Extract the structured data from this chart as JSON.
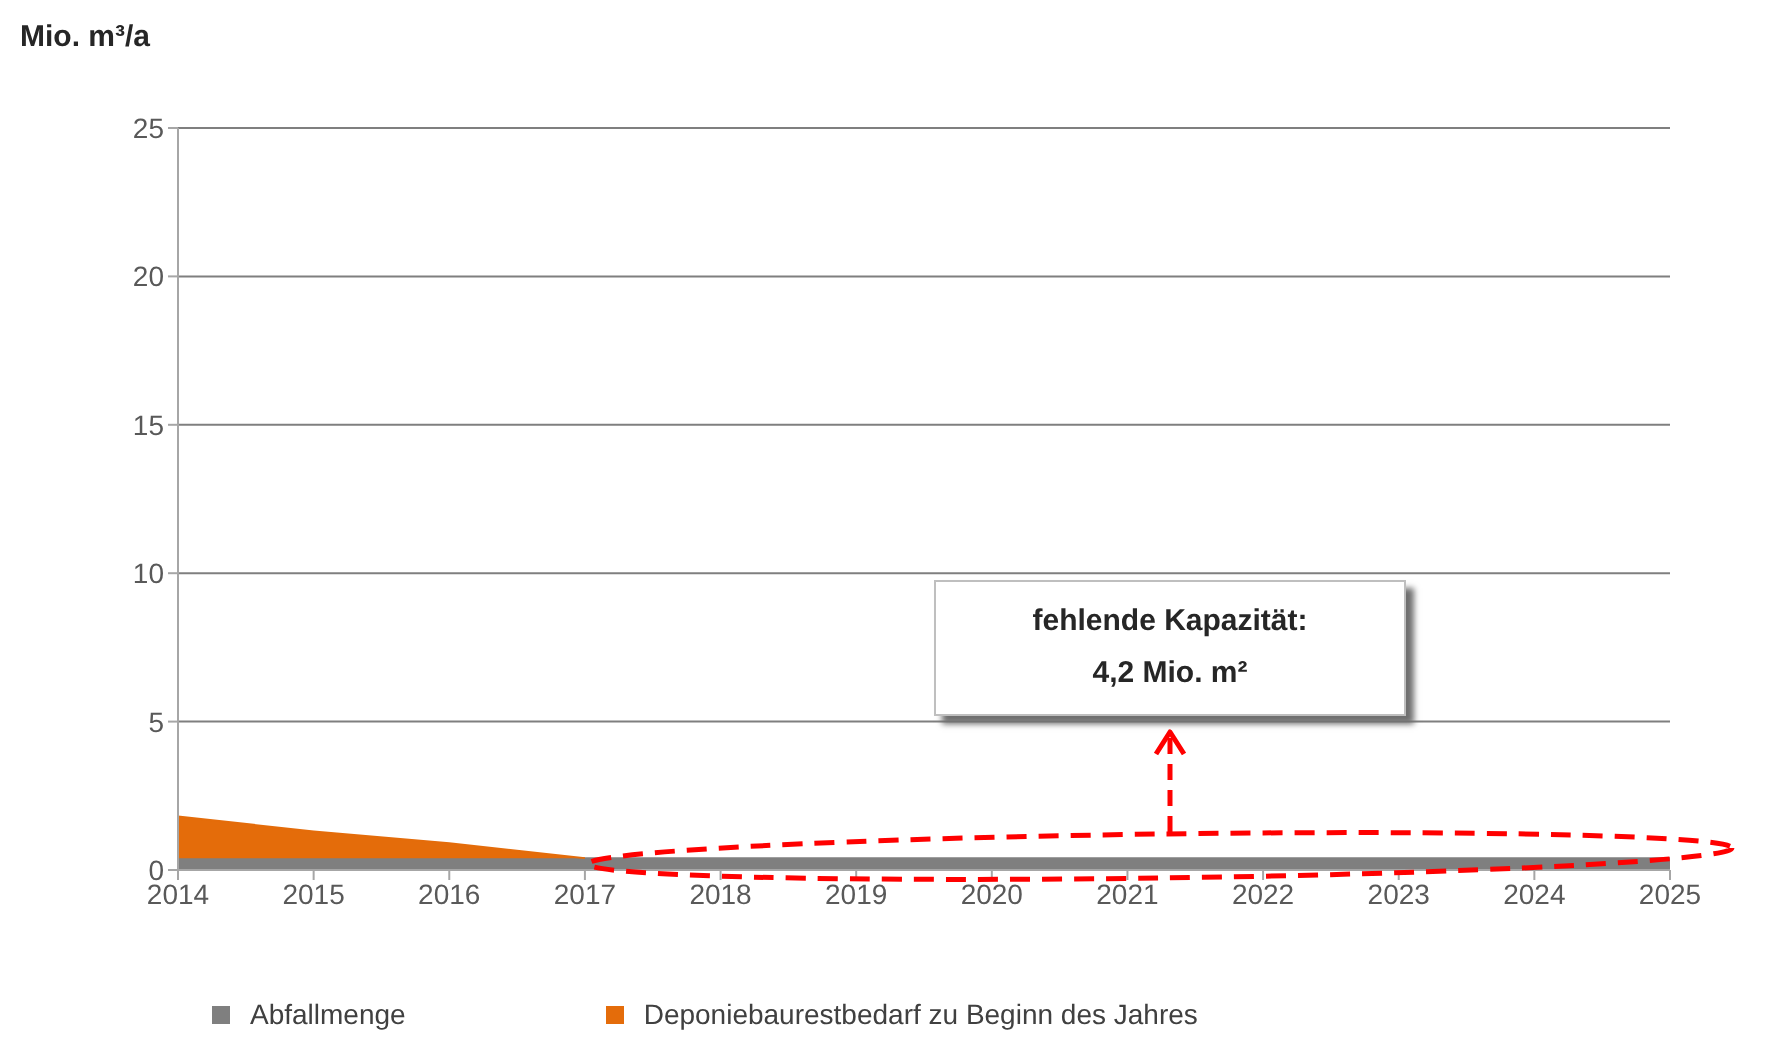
{
  "chart_data": {
    "type": "area",
    "ylabel": "Mio. m³/a",
    "x": [
      2014,
      2015,
      2016,
      2017,
      2018,
      2019,
      2020,
      2021,
      2022,
      2023,
      2024,
      2025
    ],
    "xlim": [
      2014,
      2025
    ],
    "xticks": [
      2014,
      2015,
      2016,
      2017,
      2018,
      2019,
      2020,
      2021,
      2022,
      2023,
      2024,
      2025
    ],
    "ylim": [
      0,
      25
    ],
    "yticks": [
      0,
      5,
      10,
      15,
      20,
      25
    ],
    "grid": "y",
    "stacked": true,
    "legend": "bottom",
    "series": [
      {
        "name": "Abfallmenge",
        "color": "#7f7f7f",
        "values": [
          0.4,
          0.4,
          0.4,
          0.4,
          0.4,
          0.4,
          0.4,
          0.4,
          0.4,
          0.4,
          0.4,
          0.4
        ]
      },
      {
        "name": "Deponiebaurestbedarf zu Beginn des Jahres",
        "color": "#e46c0a",
        "values": [
          1.4,
          0.9,
          0.5,
          0,
          null,
          null,
          null,
          null,
          null,
          null,
          null,
          null
        ]
      }
    ],
    "annotations": [
      "fehlende Kapazität:\n4,2 Mio. m²"
    ]
  }
}
